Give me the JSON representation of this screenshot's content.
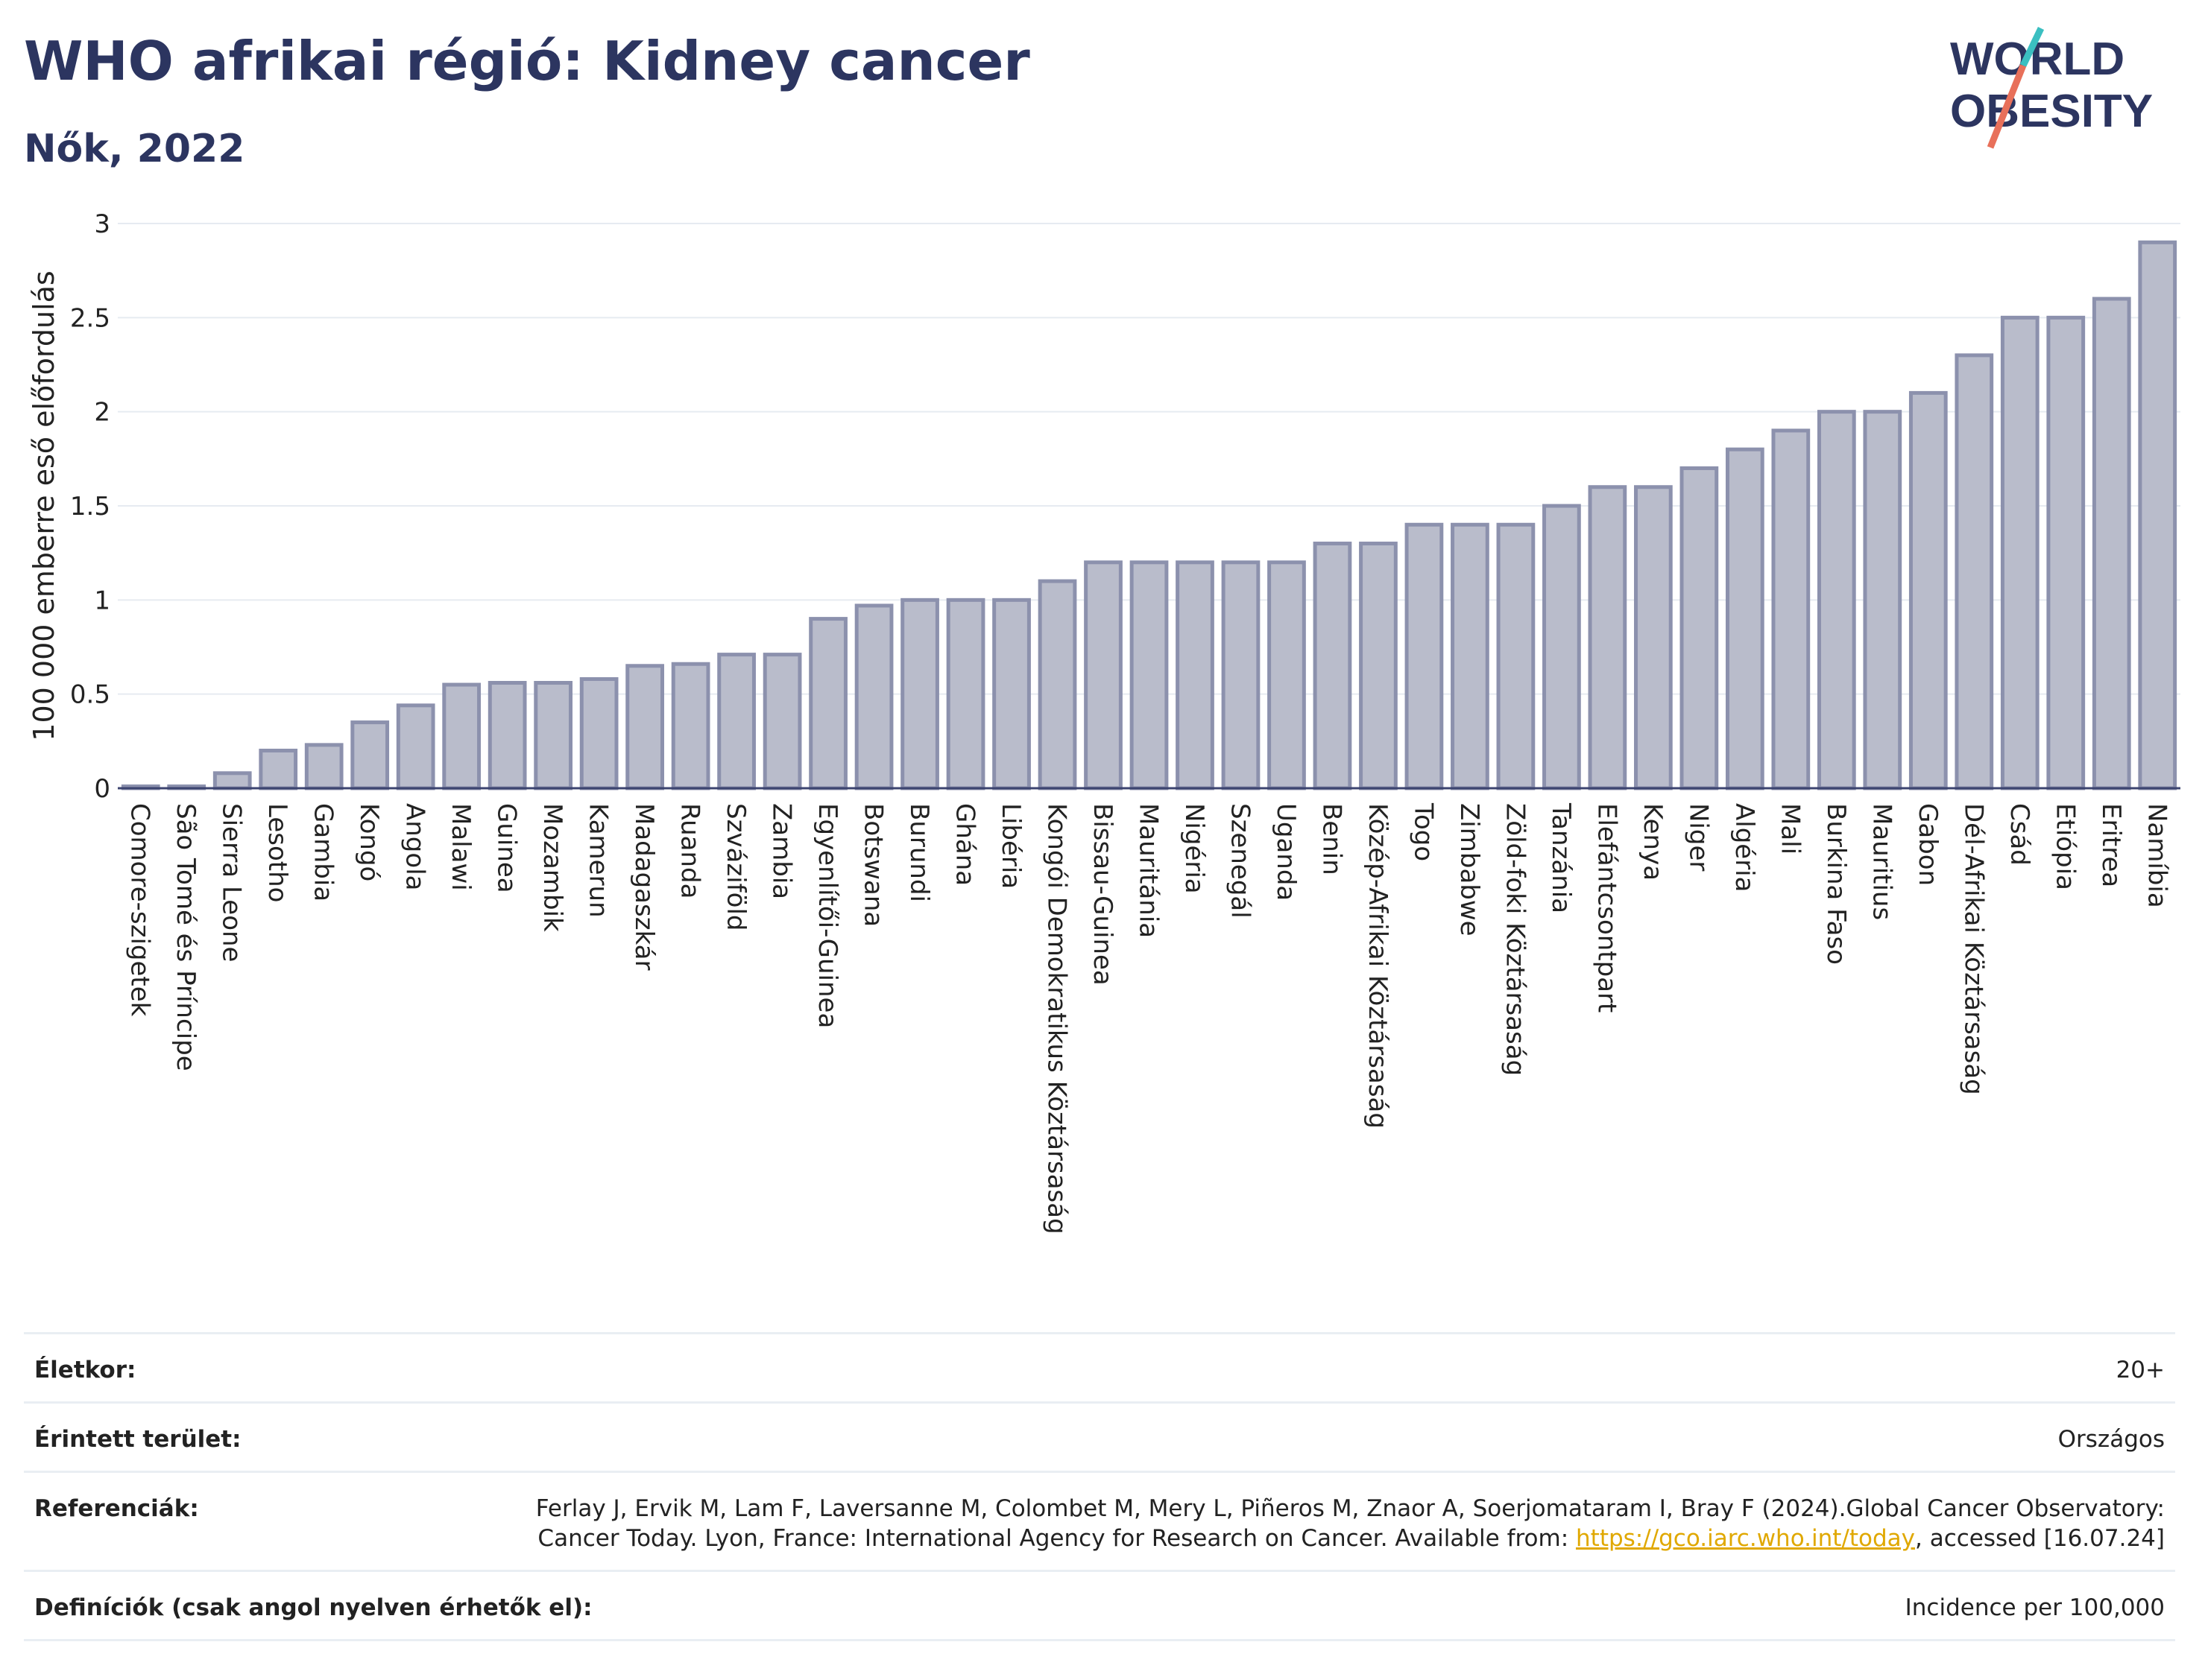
{
  "header": {
    "title": "WHO afrikai régió: Kidney cancer",
    "subtitle": "Nők, 2022",
    "logo_line1": "WORLD",
    "logo_line2": "OBESITY"
  },
  "colors": {
    "bar_fill": "#b9bccb",
    "bar_stroke": "#8c91ad",
    "title": "#2c3560",
    "logo_teal": "#3bbfc1",
    "logo_red": "#e8705a"
  },
  "chart_data": {
    "type": "bar",
    "title": "WHO afrikai régió: Kidney cancer",
    "subtitle": "Nők, 2022",
    "xlabel": "",
    "ylabel": "100 000 emberre eső előfordulás",
    "ylim": [
      0,
      3
    ],
    "yticks": [
      "0",
      "0.5",
      "1",
      "1.5",
      "2",
      "2.5",
      "3"
    ],
    "grid": true,
    "categories": [
      "Comore-szigetek",
      "São Tomé és Príncipe",
      "Sierra Leone",
      "Lesotho",
      "Gambia",
      "Kongó",
      "Angola",
      "Malawi",
      "Guinea",
      "Mozambik",
      "Kamerun",
      "Madagaszkár",
      "Ruanda",
      "Szváziföld",
      "Zambia",
      "Egyenlítői-Guinea",
      "Botswana",
      "Burundi",
      "Ghána",
      "Libéria",
      "Kongói Demokratikus Köztársaság",
      "Bissau-Guinea",
      "Mauritánia",
      "Nigéria",
      "Szenegál",
      "Uganda",
      "Benin",
      "Közép-Afrikai Köztársaság",
      "Togo",
      "Zimbabwe",
      "Zöld-foki Köztársaság",
      "Tanzánia",
      "Elefántcsontpart",
      "Kenya",
      "Niger",
      "Algéria",
      "Mali",
      "Burkina Faso",
      "Mauritius",
      "Gabon",
      "Dél-Afrikai Köztársaság",
      "Csád",
      "Etiópia",
      "Eritrea",
      "Namíbia"
    ],
    "values": [
      0.01,
      0.01,
      0.08,
      0.2,
      0.23,
      0.35,
      0.44,
      0.55,
      0.56,
      0.56,
      0.58,
      0.65,
      0.66,
      0.71,
      0.71,
      0.9,
      0.97,
      1.0,
      1.0,
      1.0,
      1.1,
      1.2,
      1.2,
      1.2,
      1.2,
      1.2,
      1.3,
      1.3,
      1.4,
      1.4,
      1.4,
      1.5,
      1.6,
      1.6,
      1.7,
      1.8,
      1.9,
      2.0,
      2.0,
      2.1,
      2.3,
      2.5,
      2.5,
      2.6,
      2.9
    ]
  },
  "meta": [
    {
      "label": "Életkor:",
      "value": "20+"
    },
    {
      "label": "Érintett terület:",
      "value": "Országos"
    },
    {
      "label": "Referenciák:",
      "value_before": "Ferlay J, Ervik M, Lam F, Laversanne M, Colombet M, Mery L, Piñeros M, Znaor A, Soerjomataram I, Bray F (2024).Global Cancer Observatory: Cancer Today. Lyon, France: International Agency for Research on Cancer. Available from: ",
      "link": "https://gco.iarc.who.int/today",
      "value_after": ", accessed [16.07.24]"
    },
    {
      "label": "Definíciók (csak angol nyelven érhetők el):",
      "value": "Incidence per 100,000"
    }
  ]
}
